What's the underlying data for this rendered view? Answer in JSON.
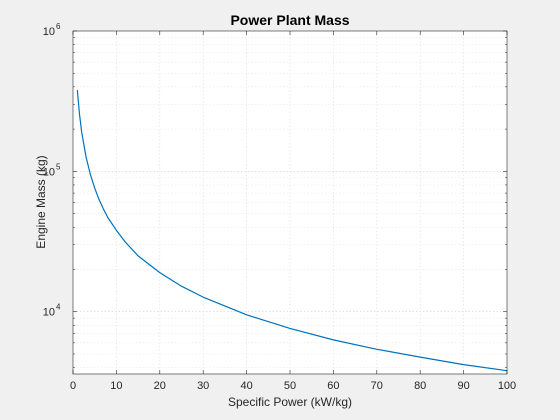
{
  "chart_data": {
    "type": "line",
    "title": "Power Plant Mass",
    "xlabel": "Specific Power (kW/kg)",
    "ylabel": "Engine Mass (kg)",
    "xlim": [
      0,
      100
    ],
    "ylim": [
      3600,
      1000000
    ],
    "yscale": "log",
    "grid": true,
    "minor_grid": true,
    "x_ticks": [
      0,
      10,
      20,
      30,
      40,
      50,
      60,
      70,
      80,
      90,
      100
    ],
    "y_ticks": [
      {
        "base": "10",
        "exp": "4",
        "value": 10000
      },
      {
        "base": "10",
        "exp": "5",
        "value": 100000
      },
      {
        "base": "10",
        "exp": "6",
        "value": 1000000
      }
    ],
    "series": [
      {
        "color": "#0072bd",
        "x": [
          1,
          1.5,
          2,
          3,
          4,
          5,
          6,
          7,
          8,
          10,
          12,
          15,
          20,
          25,
          30,
          40,
          50,
          60,
          70,
          80,
          90,
          100
        ],
        "y": [
          380000,
          255000,
          190000,
          127000,
          95000,
          76000,
          63000,
          54000,
          47000,
          38000,
          31500,
          25000,
          19000,
          15200,
          12700,
          9500,
          7600,
          6300,
          5400,
          4750,
          4200,
          3800
        ]
      }
    ]
  }
}
